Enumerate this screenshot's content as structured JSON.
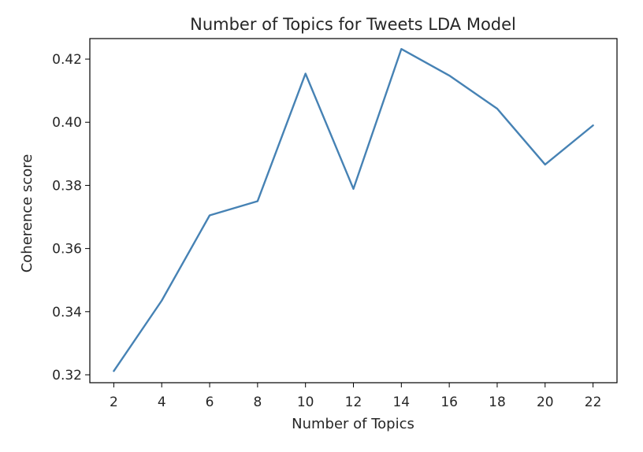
{
  "chart_data": {
    "type": "line",
    "title": "Number of Topics for Tweets LDA Model",
    "xlabel": "Number of Topics",
    "ylabel": "Coherence score",
    "x": [
      2,
      4,
      6,
      8,
      10,
      12,
      14,
      16,
      18,
      20,
      22
    ],
    "series": [
      {
        "values": [
          0.3212,
          0.3435,
          0.3705,
          0.375,
          0.4154,
          0.3789,
          0.4232,
          0.4148,
          0.4043,
          0.3866,
          0.399
        ],
        "color": "#4682b4"
      }
    ],
    "xticks": [
      "2",
      "4",
      "6",
      "8",
      "10",
      "12",
      "14",
      "16",
      "18",
      "20",
      "22"
    ],
    "yticks": [
      "0.32",
      "0.34",
      "0.36",
      "0.38",
      "0.40",
      "0.42"
    ],
    "xlim": [
      1,
      23
    ],
    "ylim": [
      0.3175,
      0.4265
    ],
    "grid": false
  }
}
